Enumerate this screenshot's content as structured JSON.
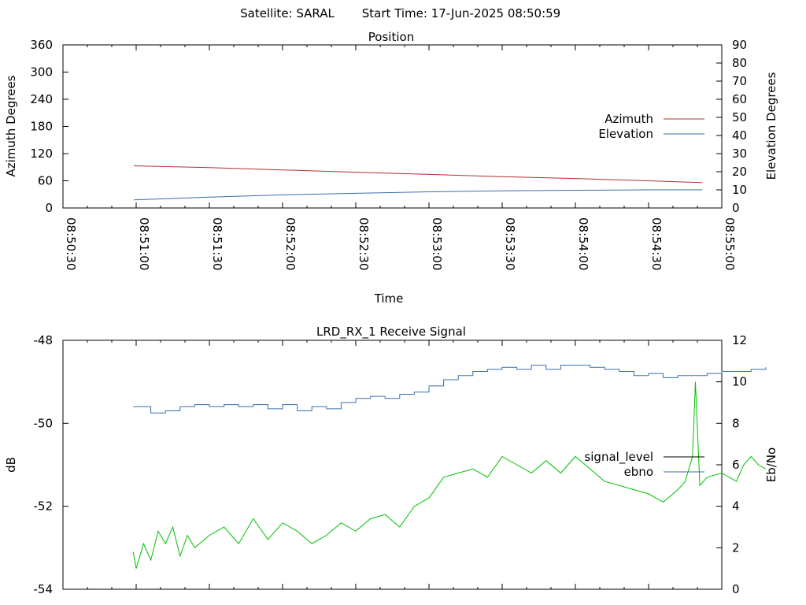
{
  "header": {
    "satellite": "Satellite: SARAL",
    "start_time": "Start Time: 17-Jun-2025 08:50:59"
  },
  "colors": {
    "azimuth": "#b03030",
    "elevation": "#3a6fa8",
    "signal_level": "#000000",
    "ebno": "#3a6fa8",
    "signal_trace": "#00c000"
  },
  "chart_data": [
    {
      "type": "line",
      "title": "Position",
      "xlabel": "Time",
      "ylabel": "Azimuth Degrees",
      "y2label": "Elevation Degrees",
      "xlim": [
        "08:50:30",
        "08:55:00"
      ],
      "ylim": [
        0,
        360
      ],
      "y2lim": [
        0,
        90
      ],
      "x_ticks": [
        "08:50:30",
        "08:51:00",
        "08:51:30",
        "08:52:00",
        "08:52:30",
        "08:53:00",
        "08:53:30",
        "08:54:00",
        "08:54:30",
        "08:55:00"
      ],
      "y_ticks": [
        "0",
        "60",
        "120",
        "180",
        "240",
        "300",
        "360"
      ],
      "y2_ticks": [
        "0",
        "10",
        "20",
        "30",
        "40",
        "50",
        "60",
        "70",
        "80",
        "90"
      ],
      "legend_position": "right",
      "series": [
        {
          "name": "Azimuth",
          "axis": "y",
          "x": [
            "08:50:59",
            "08:51:30",
            "08:52:00",
            "08:52:30",
            "08:53:00",
            "08:53:30",
            "08:54:00",
            "08:54:30",
            "08:54:52"
          ],
          "values": [
            93,
            89,
            84,
            79,
            74,
            69,
            65,
            60,
            56
          ]
        },
        {
          "name": "Elevation",
          "axis": "y2",
          "x": [
            "08:50:59",
            "08:51:30",
            "08:52:00",
            "08:52:30",
            "08:53:00",
            "08:53:30",
            "08:54:00",
            "08:54:30",
            "08:54:52"
          ],
          "values": [
            4.5,
            6.0,
            7.2,
            8.1,
            8.9,
            9.5,
            9.8,
            10.0,
            10.0
          ]
        }
      ]
    },
    {
      "type": "line",
      "title": "LRD_RX_1 Receive Signal",
      "ylabel": "dB",
      "y2label": "Eb/No",
      "ylim": [
        -54,
        -48
      ],
      "y2lim": [
        0,
        12
      ],
      "y_ticks": [
        "-48",
        "-50",
        "-52",
        "-54"
      ],
      "y2_ticks": [
        "0",
        "2",
        "4",
        "6",
        "8",
        "10",
        "12"
      ],
      "legend_position": "right",
      "series": [
        {
          "name": "signal_level",
          "axis": "y",
          "x_minutes": [
            0.48,
            0.5,
            0.55,
            0.6,
            0.65,
            0.7,
            0.75,
            0.8,
            0.85,
            0.9,
            1.0,
            1.1,
            1.2,
            1.3,
            1.4,
            1.5,
            1.6,
            1.7,
            1.8,
            1.9,
            2.0,
            2.1,
            2.2,
            2.3,
            2.4,
            2.5,
            2.6,
            2.7,
            2.8,
            2.9,
            3.0,
            3.1,
            3.2,
            3.3,
            3.4,
            3.5,
            3.6,
            3.7,
            3.8,
            3.9,
            4.0,
            4.1,
            4.2,
            4.25,
            4.3,
            4.32,
            4.35,
            4.4,
            4.5,
            4.6,
            4.65,
            4.7,
            4.75,
            4.8
          ],
          "values": [
            -53.1,
            -53.5,
            -52.9,
            -53.3,
            -52.6,
            -52.9,
            -52.5,
            -53.2,
            -52.7,
            -53.0,
            -52.7,
            -52.5,
            -52.9,
            -52.3,
            -52.8,
            -52.4,
            -52.6,
            -52.9,
            -52.7,
            -52.4,
            -52.6,
            -52.3,
            -52.2,
            -52.5,
            -52.0,
            -51.8,
            -51.3,
            -51.2,
            -51.1,
            -51.3,
            -50.8,
            -51.0,
            -51.2,
            -50.9,
            -51.2,
            -50.8,
            -51.1,
            -51.4,
            -51.5,
            -51.6,
            -51.7,
            -51.9,
            -51.6,
            -51.4,
            -50.8,
            -49.0,
            -51.5,
            -51.3,
            -51.2,
            -51.4,
            -51.0,
            -50.8,
            -51.0,
            -51.1
          ]
        },
        {
          "name": "ebno",
          "axis": "y2",
          "x_minutes": [
            0.48,
            0.5,
            0.6,
            0.7,
            0.8,
            0.9,
            1.0,
            1.1,
            1.2,
            1.3,
            1.4,
            1.5,
            1.6,
            1.7,
            1.8,
            1.9,
            2.0,
            2.1,
            2.2,
            2.3,
            2.4,
            2.5,
            2.6,
            2.7,
            2.8,
            2.9,
            3.0,
            3.1,
            3.2,
            3.3,
            3.4,
            3.5,
            3.6,
            3.7,
            3.8,
            3.9,
            4.0,
            4.1,
            4.2,
            4.3,
            4.4,
            4.5,
            4.6,
            4.7,
            4.8
          ],
          "values": [
            8.8,
            8.8,
            8.5,
            8.6,
            8.8,
            8.9,
            8.8,
            8.9,
            8.8,
            8.9,
            8.7,
            8.9,
            8.6,
            8.8,
            8.7,
            9.0,
            9.2,
            9.3,
            9.2,
            9.4,
            9.5,
            9.8,
            10.1,
            10.3,
            10.5,
            10.6,
            10.7,
            10.6,
            10.8,
            10.6,
            10.8,
            10.8,
            10.7,
            10.6,
            10.5,
            10.3,
            10.4,
            10.2,
            10.3,
            10.3,
            10.4,
            10.5,
            10.5,
            10.6,
            10.7
          ]
        }
      ]
    }
  ]
}
